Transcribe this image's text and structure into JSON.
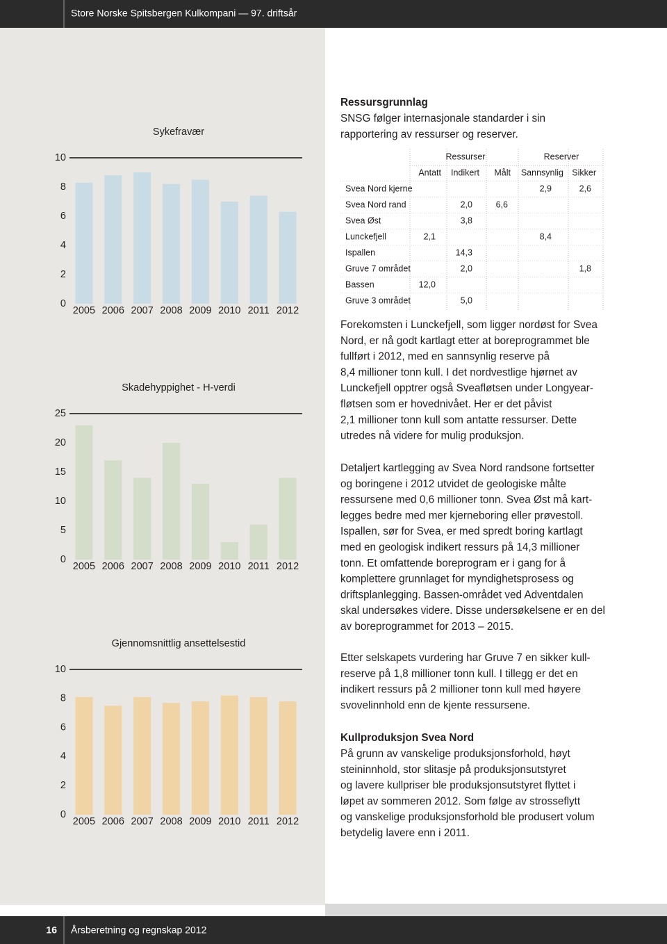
{
  "header": {
    "title": "Store Norske Spitsbergen Kulkompani — 97. driftsår"
  },
  "chart_data": [
    {
      "type": "bar",
      "title": "Sykefravær",
      "categories": [
        "2005",
        "2006",
        "2007",
        "2008",
        "2009",
        "2010",
        "2011",
        "2012"
      ],
      "values": [
        8.3,
        8.8,
        9.0,
        8.2,
        8.5,
        7.0,
        7.4,
        6.3
      ],
      "color": "#c9dbe5",
      "ylim": [
        0,
        10
      ],
      "yticks": [
        0,
        2,
        4,
        6,
        8,
        10
      ],
      "grid": false
    },
    {
      "type": "bar",
      "title": "Skadehyppighet - H-verdi",
      "categories": [
        "2005",
        "2006",
        "2007",
        "2008",
        "2009",
        "2010",
        "2011",
        "2012"
      ],
      "values": [
        23,
        17,
        14,
        20,
        13,
        3,
        6,
        14
      ],
      "color": "#d4ddca",
      "ylim": [
        0,
        25
      ],
      "yticks": [
        0,
        5,
        10,
        15,
        20,
        25
      ],
      "grid": false
    },
    {
      "type": "bar",
      "title": "Gjennomsnittlig ansettelsestid",
      "categories": [
        "2005",
        "2006",
        "2007",
        "2008",
        "2009",
        "2010",
        "2011",
        "2012"
      ],
      "values": [
        8.1,
        7.5,
        8.1,
        7.7,
        7.8,
        8.2,
        8.1,
        7.8
      ],
      "color": "#f0d4a5",
      "ylim": [
        0,
        10
      ],
      "yticks": [
        0,
        2,
        4,
        6,
        8,
        10
      ],
      "grid": false
    }
  ],
  "intro": {
    "heading": "Ressursgrunnlag",
    "lines": [
      "SNSG følger internasjonale standarder i sin",
      "rapportering av ressurser og reserver."
    ]
  },
  "table": {
    "groups": [
      "Ressurser",
      "Reserver"
    ],
    "columns": [
      "Antatt",
      "Indikert",
      "Målt",
      "Sannsynlig",
      "Sikker"
    ],
    "rows": [
      {
        "label": "Svea Nord kjerne",
        "cells": [
          null,
          null,
          null,
          "2,9",
          "2,6"
        ]
      },
      {
        "label": "Svea Nord rand",
        "cells": [
          null,
          "2,0",
          "6,6",
          null,
          null
        ]
      },
      {
        "label": "Svea Øst",
        "cells": [
          null,
          "3,8",
          null,
          null,
          null
        ]
      },
      {
        "label": "Lunckefjell",
        "cells": [
          "2,1",
          null,
          null,
          "8,4",
          null
        ]
      },
      {
        "label": "Ispallen",
        "cells": [
          null,
          "14,3",
          null,
          null,
          null
        ]
      },
      {
        "label": "Gruve 7 området",
        "cells": [
          null,
          "2,0",
          null,
          null,
          "1,8"
        ]
      },
      {
        "label": "Bassen",
        "cells": [
          "12,0",
          null,
          null,
          null,
          null
        ]
      },
      {
        "label": "Gruve 3 området",
        "cells": [
          null,
          "5,0",
          null,
          null,
          null
        ]
      }
    ]
  },
  "paragraphs": [
    {
      "lines": [
        "Forekomsten i Lunckefjell, som ligger nordøst for Svea",
        "Nord, er nå godt kartlagt etter at boreprogrammet ble",
        "fullført i 2012, med en sannsynlig reserve på",
        "8,4 millioner tonn kull. I det nordvestlige hjørnet av",
        "Lunckefjell opptrer også Sveafløtsen under Longyear-",
        "fløtsen som er hovednivået. Her er det påvist",
        "2,1 millioner tonn kull som antatte ressurser. Dette",
        "utredes nå videre for mulig produksjon."
      ]
    },
    {
      "lines": [
        "Detaljert kartlegging av Svea Nord randsone fortsetter",
        "og boringene i 2012 utvidet de geologiske målte",
        "ressursene med 0,6 millioner tonn. Svea Øst må kart-",
        "legges bedre med mer kjerneboring eller prøvestoll.",
        "Ispallen, sør for Svea, er med spredt boring kartlagt",
        "med en geologisk indikert ressurs på 14,3 millioner",
        "tonn. Et omfattende boreprogram er i gang for å",
        "komplettere grunnlaget for myndighetsprosess og",
        "driftsplanlegging. Bassen-området ved Adventdalen",
        "skal undersøkes videre. Disse undersøkelsene er en del",
        "av boreprogrammet for 2013 – 2015."
      ]
    },
    {
      "lines": [
        "Etter selskapets vurdering har Gruve 7 en sikker kull-",
        "reserve på 1,8 millioner tonn kull. I tillegg er det en",
        "indikert ressurs på 2 millioner tonn kull med høyere",
        "svovelinnhold enn de kjente ressursene."
      ]
    }
  ],
  "section": {
    "heading": "Kullproduksjon Svea Nord",
    "lines": [
      "På grunn av vanskelige produksjonsforhold, høyt",
      "steininnhold, stor slitasje på produksjonsutstyret",
      "og lavere kullpriser ble produksjonsutstyret flyttet i",
      "løpet av sommeren 2012. Som følge av strosseflytt",
      "og vanskelige produksjonsforhold ble produsert volum",
      "betydelig lavere enn i 2011."
    ]
  },
  "footer": {
    "page": "16",
    "title": "Årsberetning og regnskap 2012"
  }
}
